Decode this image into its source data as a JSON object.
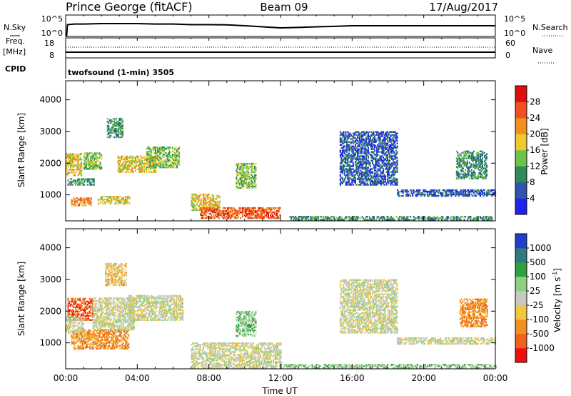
{
  "header": {
    "station": "Prince George (fitACF)",
    "beam": "Beam 09",
    "date": "17/Aug/2017"
  },
  "chart_data": [
    {
      "type": "line",
      "name": "noise-panel",
      "left_label": "N.Sky",
      "right_label": "N.Search",
      "left_ticks": [
        "10^5",
        "10^0"
      ],
      "right_ticks": [
        "10^5",
        "10^0"
      ],
      "series": [
        {
          "name": "N.Sky",
          "style": "solid",
          "x": [
            0.05,
            0.1,
            0.5,
            1,
            2,
            3,
            4,
            5,
            6,
            7,
            8,
            9,
            10,
            11,
            12,
            13,
            14,
            15,
            16,
            17,
            18,
            19,
            20,
            21,
            22,
            23,
            24
          ],
          "values": [
            0,
            0.55,
            0.58,
            0.58,
            0.6,
            0.6,
            0.6,
            0.58,
            0.58,
            0.55,
            0.55,
            0.54,
            0.5,
            0.45,
            0.4,
            0.42,
            0.45,
            0.47,
            0.5,
            0.5,
            0.5,
            0.5,
            0.5,
            0.5,
            0.5,
            0.5,
            0.5
          ]
        }
      ]
    },
    {
      "type": "line",
      "name": "frequency-panel",
      "left_label": "Freq.",
      "left_unit": "[MHz]",
      "right_label": "Nave",
      "left_ticks": [
        "18",
        "8"
      ],
      "right_ticks": [
        "60",
        "0"
      ],
      "series": [
        {
          "name": "Freq",
          "style": "solid",
          "x": [
            0,
            24
          ],
          "values": [
            10.5,
            10.5
          ]
        },
        {
          "name": "Nave",
          "style": "dotted",
          "x": [
            0,
            24
          ],
          "values": [
            28,
            28
          ]
        }
      ]
    },
    {
      "type": "text",
      "name": "cpid-panel",
      "label": "CPID",
      "program": "twofsound (1-min) 3505"
    },
    {
      "type": "heatmap",
      "name": "power-panel",
      "ylabel": "Slant Range [km]",
      "yticks": [
        1000,
        2000,
        3000,
        4000
      ],
      "ylim": [
        180,
        4600
      ],
      "colorbar_label": "Power [dB]",
      "colorbar_ticks": [
        "4",
        "8",
        "12",
        "16",
        "20",
        "24",
        "28"
      ],
      "colors": [
        "#2222ee",
        "#2f55aa",
        "#2f8a5a",
        "#6cc24a",
        "#f0c830",
        "#f09020",
        "#ee5020",
        "#dd1010"
      ],
      "echo_regions": [
        {
          "t": [
            0.0,
            0.9
          ],
          "r": [
            1600,
            2300
          ],
          "level": 4
        },
        {
          "t": [
            0.1,
            1.6
          ],
          "r": [
            1300,
            1500
          ],
          "level": 2
        },
        {
          "t": [
            0.3,
            1.4
          ],
          "r": [
            650,
            900
          ],
          "level": 5
        },
        {
          "t": [
            1.8,
            3.6
          ],
          "r": [
            700,
            950
          ],
          "level": 4
        },
        {
          "t": [
            1.0,
            2.0
          ],
          "r": [
            1800,
            2300
          ],
          "level": 3
        },
        {
          "t": [
            2.3,
            3.2
          ],
          "r": [
            2800,
            3400
          ],
          "level": 2
        },
        {
          "t": [
            2.9,
            5.0
          ],
          "r": [
            1700,
            2200
          ],
          "level": 4
        },
        {
          "t": [
            4.5,
            6.3
          ],
          "r": [
            1850,
            2500
          ],
          "level": 3
        },
        {
          "t": [
            7.0,
            8.6
          ],
          "r": [
            500,
            1000
          ],
          "level": 4
        },
        {
          "t": [
            7.5,
            12.0
          ],
          "r": [
            250,
            600
          ],
          "level": 6
        },
        {
          "t": [
            9.5,
            10.6
          ],
          "r": [
            1200,
            2000
          ],
          "level": 3
        },
        {
          "t": [
            12.5,
            23.8
          ],
          "r": [
            200,
            320
          ],
          "level": 2
        },
        {
          "t": [
            15.3,
            18.5
          ],
          "r": [
            1300,
            3000
          ],
          "level": 1
        },
        {
          "t": [
            18.5,
            24.0
          ],
          "r": [
            950,
            1150
          ],
          "level": 1
        },
        {
          "t": [
            21.8,
            23.5
          ],
          "r": [
            1500,
            2400
          ],
          "level": 2
        }
      ]
    },
    {
      "type": "heatmap",
      "name": "velocity-panel",
      "ylabel": "Slant Range [km]",
      "yticks": [
        1000,
        2000,
        3000,
        4000
      ],
      "ylim": [
        180,
        4600
      ],
      "xlabel": "Time UT",
      "xticks": [
        "00:00",
        "04:00",
        "08:00",
        "12:00",
        "16:00",
        "20:00",
        "00:00"
      ],
      "colorbar_label": "Velocity [m s",
      "colorbar_sup": "-1",
      "colorbar_ticks": [
        "-1000",
        "-500",
        "-100",
        "-25",
        "25",
        "100",
        "500",
        "1000"
      ],
      "colors": [
        "#ee1010",
        "#f06020",
        "#f09020",
        "#f0c840",
        "#c8c8c0",
        "#8fd080",
        "#2fa040",
        "#2f7a7a",
        "#2040cc"
      ],
      "echo_regions": [
        {
          "t": [
            0.1,
            1.5
          ],
          "r": [
            1700,
            2400
          ],
          "level": 1
        },
        {
          "t": [
            0.3,
            3.5
          ],
          "r": [
            800,
            1400
          ],
          "level": 2
        },
        {
          "t": [
            0.0,
            1.0
          ],
          "r": [
            1300,
            1800
          ],
          "level": 4
        },
        {
          "t": [
            1.5,
            3.8
          ],
          "r": [
            1400,
            2400
          ],
          "level": 4
        },
        {
          "t": [
            2.2,
            3.4
          ],
          "r": [
            2800,
            3500
          ],
          "level": 3
        },
        {
          "t": [
            3.5,
            6.5
          ],
          "r": [
            1700,
            2500
          ],
          "level": 4
        },
        {
          "t": [
            7.0,
            12.0
          ],
          "r": [
            200,
            1000
          ],
          "level": 4
        },
        {
          "t": [
            9.5,
            10.6
          ],
          "r": [
            1200,
            2000
          ],
          "level": 5
        },
        {
          "t": [
            12.0,
            24.0
          ],
          "r": [
            200,
            320
          ],
          "level": 5
        },
        {
          "t": [
            15.3,
            18.5
          ],
          "r": [
            1300,
            3000
          ],
          "level": 4
        },
        {
          "t": [
            18.5,
            24.0
          ],
          "r": [
            950,
            1150
          ],
          "level": 4
        },
        {
          "t": [
            22.0,
            23.5
          ],
          "r": [
            1500,
            2400
          ],
          "level": 2
        }
      ]
    }
  ]
}
